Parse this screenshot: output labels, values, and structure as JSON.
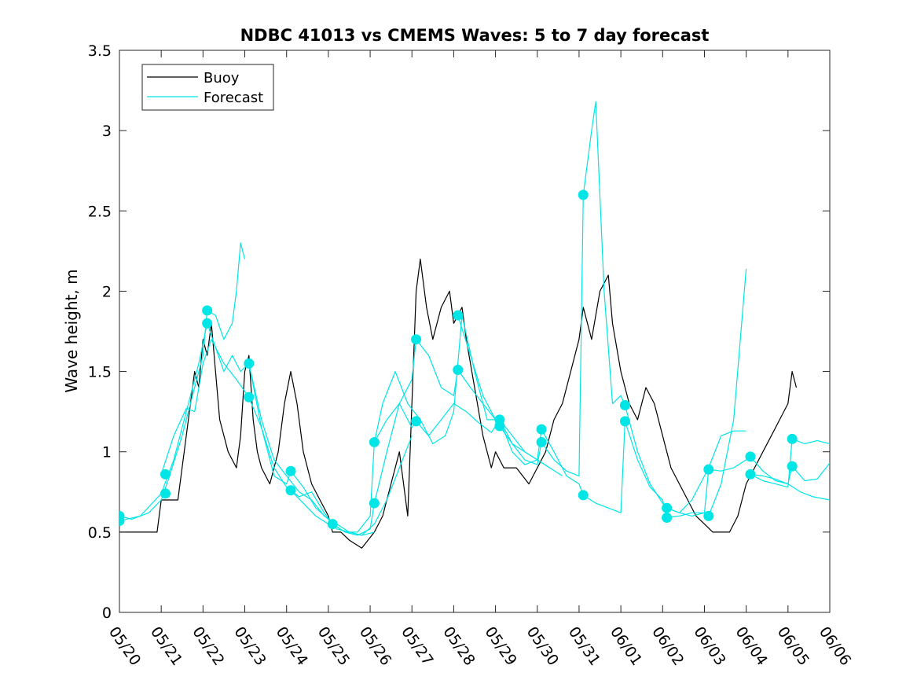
{
  "chart_data": {
    "type": "line",
    "title": "NDBC 41013 vs CMEMS Waves: 5 to 7 day forecast",
    "xlabel": "",
    "ylabel": "Wave height, m",
    "xlim": [
      0,
      17
    ],
    "ylim": [
      0,
      3.5
    ],
    "x_tick_labels": [
      "05/20",
      "05/21",
      "05/22",
      "05/23",
      "05/24",
      "05/25",
      "05/26",
      "05/27",
      "05/28",
      "05/29",
      "05/30",
      "05/31",
      "06/01",
      "06/02",
      "06/03",
      "06/04",
      "06/05",
      "06/06"
    ],
    "y_tick_values": [
      0,
      0.5,
      1,
      1.5,
      2,
      2.5,
      3,
      3.5
    ],
    "y_tick_labels": [
      "0",
      "0.5",
      "1",
      "1.5",
      "2",
      "2.5",
      "3",
      "3.5"
    ],
    "grid": false,
    "legend_placement": "top-left",
    "legend": [
      {
        "label": "Buoy",
        "color": "#000000"
      },
      {
        "label": "Forecast",
        "color": "#00e5e5"
      }
    ],
    "series": [
      {
        "name": "Buoy",
        "color": "#000000",
        "x": [
          0,
          0.9,
          1.0,
          1.4,
          1.55,
          1.7,
          1.8,
          1.9,
          2.0,
          2.1,
          2.2,
          2.3,
          2.4,
          2.6,
          2.8,
          2.9,
          3.0,
          3.1,
          3.2,
          3.3,
          3.4,
          3.6,
          3.8,
          3.95,
          4.1,
          4.25,
          4.4,
          4.6,
          4.8,
          5.0,
          5.1,
          5.3,
          5.5,
          5.8,
          6.1,
          6.3,
          6.5,
          6.7,
          6.8,
          6.9,
          7.0,
          7.1,
          7.2,
          7.35,
          7.5,
          7.7,
          7.9,
          8.0,
          8.2,
          8.3,
          8.5,
          8.7,
          8.9,
          9.0,
          9.2,
          9.5,
          9.8,
          10.0,
          10.2,
          10.4,
          10.6,
          10.8,
          11.0,
          11.1,
          11.3,
          11.5,
          11.7,
          11.8,
          12.0,
          12.2,
          12.4,
          12.6,
          12.8,
          13.0,
          13.2,
          13.4,
          13.6,
          13.8,
          14.0,
          14.2,
          14.4,
          14.6,
          14.8,
          15.0,
          15.2,
          15.4,
          15.6,
          15.8,
          16.0,
          16.1,
          16.2
        ],
        "y": [
          0.5,
          0.5,
          0.7,
          0.7,
          1.0,
          1.3,
          1.5,
          1.4,
          1.7,
          1.6,
          1.8,
          1.5,
          1.2,
          1.0,
          0.9,
          1.1,
          1.5,
          1.6,
          1.2,
          1.0,
          0.9,
          0.8,
          1.0,
          1.3,
          1.5,
          1.3,
          1.0,
          0.8,
          0.7,
          0.6,
          0.5,
          0.5,
          0.45,
          0.4,
          0.5,
          0.6,
          0.8,
          1.0,
          0.8,
          0.6,
          1.3,
          2.0,
          2.2,
          1.9,
          1.7,
          1.9,
          2.0,
          1.8,
          1.9,
          1.7,
          1.4,
          1.1,
          0.9,
          1.0,
          0.9,
          0.9,
          0.8,
          0.9,
          1.0,
          1.2,
          1.3,
          1.5,
          1.7,
          1.9,
          1.7,
          2.0,
          2.1,
          1.8,
          1.5,
          1.3,
          1.2,
          1.4,
          1.3,
          1.1,
          0.9,
          0.8,
          0.7,
          0.6,
          0.55,
          0.5,
          0.5,
          0.5,
          0.6,
          0.8,
          0.9,
          1.0,
          1.1,
          1.2,
          1.3,
          1.5,
          1.4
        ]
      },
      {
        "name": "Forecast",
        "color": "#00e5e5",
        "x": [
          0,
          0.3,
          0.7,
          1.0,
          1.2,
          1.5,
          1.8,
          2.0,
          2.1,
          2.3,
          2.5,
          2.7,
          2.8,
          2.9,
          3.0
        ],
        "y": [
          0.6,
          0.58,
          0.62,
          0.7,
          0.85,
          1.1,
          1.4,
          1.6,
          1.88,
          1.85,
          1.7,
          1.8,
          2.0,
          2.3,
          2.2
        ]
      },
      {
        "name": "Forecast",
        "color": "#00e5e5",
        "x": [
          0,
          0.5,
          1.0,
          1.3,
          1.6,
          1.9,
          2.1,
          2.3,
          2.5,
          2.7,
          2.9,
          3.1,
          3.4,
          3.7,
          4.0,
          4.3,
          4.6,
          4.9,
          5.2,
          5.5,
          5.8,
          6.1
        ],
        "y": [
          0.57,
          0.6,
          0.74,
          0.95,
          1.25,
          1.55,
          1.8,
          1.65,
          1.5,
          1.6,
          1.5,
          1.55,
          1.2,
          0.95,
          0.85,
          0.75,
          0.7,
          0.6,
          0.55,
          0.5,
          0.48,
          0.5
        ]
      },
      {
        "name": "Forecast",
        "color": "#00e5e5",
        "x": [
          1.0,
          1.3,
          1.6,
          1.8,
          2.0,
          2.2,
          2.5,
          2.8,
          3.1,
          3.4,
          3.7,
          4.0,
          4.3,
          4.6,
          4.9,
          5.2,
          5.5,
          5.8,
          6.1,
          6.4,
          6.7,
          7.0
        ],
        "y": [
          0.86,
          1.1,
          1.27,
          1.25,
          1.55,
          1.7,
          1.55,
          1.45,
          1.34,
          1.15,
          0.9,
          0.78,
          0.72,
          0.75,
          0.62,
          0.52,
          0.5,
          0.48,
          0.55,
          0.7,
          0.9,
          1.1
        ]
      },
      {
        "name": "Forecast",
        "color": "#00e5e5",
        "x": [
          3.1,
          3.4,
          3.7,
          4.0,
          4.1,
          4.4,
          4.7,
          5.0,
          5.1,
          5.4,
          5.7,
          6.0,
          6.1,
          6.3,
          6.6,
          6.9,
          7.2,
          7.5,
          7.8,
          8.0,
          8.2,
          8.5,
          8.8,
          9.1,
          9.4,
          9.7,
          10.0,
          10.3
        ],
        "y": [
          1.55,
          1.15,
          0.85,
          0.8,
          0.88,
          0.78,
          0.65,
          0.58,
          0.55,
          0.5,
          0.5,
          0.6,
          1.06,
          1.3,
          1.5,
          1.3,
          1.2,
          1.05,
          1.1,
          1.25,
          1.85,
          1.5,
          1.2,
          1.2,
          1.1,
          1.0,
          0.95,
          0.9
        ]
      },
      {
        "name": "Forecast",
        "color": "#00e5e5",
        "x": [
          4.1,
          4.4,
          4.7,
          5.0,
          5.1,
          5.4,
          5.7,
          6.0,
          6.1,
          6.4,
          6.7,
          7.0,
          7.1,
          7.4,
          7.7,
          8.0,
          8.1,
          8.4,
          8.7,
          9.0,
          9.1,
          9.4,
          9.7,
          10.0,
          10.3,
          10.6
        ],
        "y": [
          0.76,
          0.68,
          0.6,
          0.55,
          0.55,
          0.5,
          0.48,
          0.52,
          0.68,
          1.0,
          1.3,
          1.45,
          1.7,
          1.6,
          1.4,
          1.35,
          1.51,
          1.4,
          1.3,
          1.2,
          1.16,
          1.05,
          1.0,
          0.95,
          0.9,
          0.85
        ]
      },
      {
        "name": "Forecast",
        "color": "#00e5e5",
        "x": [
          6.1,
          6.4,
          6.7,
          7.0,
          7.1,
          7.4,
          7.7,
          8.0,
          8.3,
          8.6,
          8.9,
          9.1,
          9.4,
          9.7,
          10.0,
          10.1,
          10.4,
          10.7,
          11.0,
          11.1,
          11.3,
          11.4,
          11.6,
          11.8,
          12.0,
          12.1,
          12.4,
          12.7,
          13.0,
          13.1,
          13.4,
          13.7,
          14.0,
          14.1,
          14.4,
          14.7,
          15.0
        ],
        "y": [
          1.06,
          1.2,
          1.3,
          1.15,
          1.19,
          1.1,
          1.2,
          1.3,
          1.25,
          1.18,
          1.12,
          1.2,
          1.05,
          0.95,
          0.92,
          1.06,
          0.95,
          0.88,
          0.85,
          2.6,
          3.0,
          3.18,
          2.0,
          1.3,
          1.35,
          1.29,
          1.0,
          0.8,
          0.68,
          0.65,
          0.62,
          0.7,
          0.85,
          0.9,
          1.1,
          1.13,
          1.13
        ]
      },
      {
        "name": "Forecast",
        "color": "#00e5e5",
        "x": [
          8.1,
          8.4,
          8.7,
          9.0,
          9.1,
          9.4,
          9.7,
          10.0,
          10.1,
          10.4,
          10.7,
          11.0,
          11.1,
          11.4,
          11.7,
          12.0,
          12.1,
          12.4,
          12.7,
          13.0,
          13.1,
          13.4,
          13.7,
          14.0,
          14.1,
          14.4,
          14.7,
          15.0
        ],
        "y": [
          1.85,
          1.6,
          1.35,
          1.2,
          1.2,
          1.0,
          0.92,
          0.95,
          1.14,
          1.0,
          0.85,
          0.8,
          0.73,
          0.68,
          0.65,
          0.62,
          1.19,
          0.95,
          0.78,
          0.7,
          0.59,
          0.6,
          0.62,
          0.62,
          0.6,
          0.8,
          1.2,
          2.14
        ]
      },
      {
        "name": "Forecast",
        "color": "#00e5e5",
        "x": [
          13.1,
          13.4,
          13.7,
          14.0,
          14.1,
          14.4,
          14.7,
          15.0,
          15.1,
          15.4,
          15.7,
          16.0,
          16.1,
          16.4,
          16.7,
          17.0
        ],
        "y": [
          0.65,
          0.62,
          0.6,
          0.62,
          0.89,
          0.88,
          0.9,
          0.95,
          0.97,
          0.88,
          0.82,
          0.8,
          0.91,
          0.82,
          0.83,
          0.93
        ]
      },
      {
        "name": "Forecast",
        "color": "#00e5e5",
        "x": [
          15.1,
          15.4,
          15.7,
          16.0,
          16.1,
          16.4,
          16.7,
          17.0
        ],
        "y": [
          0.86,
          0.82,
          0.8,
          0.78,
          1.08,
          1.05,
          1.07,
          1.05
        ]
      },
      {
        "name": "Forecast",
        "color": "#00e5e5",
        "x": [
          15.1,
          15.4,
          15.7,
          16.0,
          16.3,
          16.6,
          17.0
        ],
        "y": [
          0.86,
          0.85,
          0.83,
          0.8,
          0.75,
          0.72,
          0.7
        ]
      }
    ],
    "markers": {
      "color": "#00e5e5",
      "points": [
        {
          "x": 0.0,
          "y": 0.6
        },
        {
          "x": 0.0,
          "y": 0.57
        },
        {
          "x": 1.1,
          "y": 0.86
        },
        {
          "x": 1.1,
          "y": 0.74
        },
        {
          "x": 2.1,
          "y": 1.88
        },
        {
          "x": 2.1,
          "y": 1.8
        },
        {
          "x": 3.1,
          "y": 1.55
        },
        {
          "x": 3.1,
          "y": 1.34
        },
        {
          "x": 4.1,
          "y": 0.88
        },
        {
          "x": 4.1,
          "y": 0.76
        },
        {
          "x": 5.1,
          "y": 0.55
        },
        {
          "x": 6.1,
          "y": 1.06
        },
        {
          "x": 6.1,
          "y": 0.68
        },
        {
          "x": 7.1,
          "y": 1.7
        },
        {
          "x": 7.1,
          "y": 1.19
        },
        {
          "x": 8.1,
          "y": 1.85
        },
        {
          "x": 8.1,
          "y": 1.51
        },
        {
          "x": 9.1,
          "y": 1.2
        },
        {
          "x": 9.1,
          "y": 1.16
        },
        {
          "x": 10.1,
          "y": 1.14
        },
        {
          "x": 10.1,
          "y": 1.06
        },
        {
          "x": 11.1,
          "y": 2.6
        },
        {
          "x": 11.1,
          "y": 0.73
        },
        {
          "x": 12.1,
          "y": 1.29
        },
        {
          "x": 12.1,
          "y": 1.19
        },
        {
          "x": 13.1,
          "y": 0.65
        },
        {
          "x": 13.1,
          "y": 0.59
        },
        {
          "x": 14.1,
          "y": 0.89
        },
        {
          "x": 14.1,
          "y": 0.6
        },
        {
          "x": 15.1,
          "y": 0.97
        },
        {
          "x": 15.1,
          "y": 0.86
        },
        {
          "x": 16.1,
          "y": 1.08
        },
        {
          "x": 16.1,
          "y": 0.91
        }
      ]
    }
  }
}
